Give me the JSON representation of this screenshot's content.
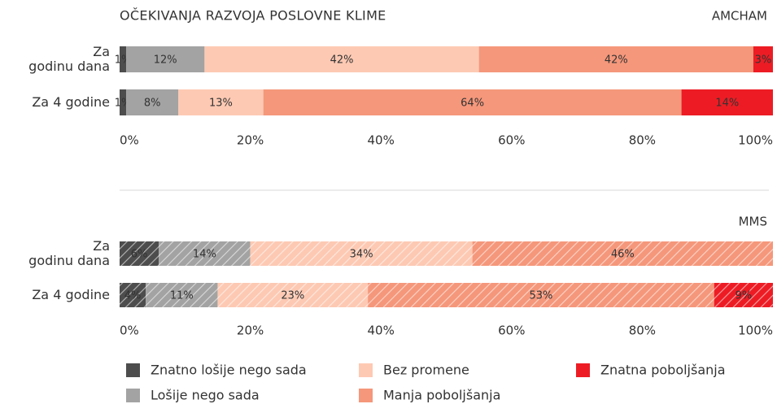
{
  "chart_data": [
    {
      "type": "stacked-bar-horizontal",
      "title": "OČEKIVANJA RAZVOJA POSLOVNE KLIME",
      "source": "AMCHAM",
      "categories": [
        "Za\ngodinu dana",
        "Za 4 godine"
      ],
      "series": [
        {
          "name": "Znatno lošije nego sada",
          "color": "#4d4d4d",
          "values": [
            1,
            1
          ],
          "value_labels": [
            "1%",
            "1%"
          ]
        },
        {
          "name": "Lošije nego sada",
          "color": "#a3a3a3",
          "values": [
            12,
            8
          ],
          "value_labels": [
            "12%",
            "8%"
          ]
        },
        {
          "name": "Bez promene",
          "color": "#fdc9b3",
          "values": [
            42,
            13
          ],
          "value_labels": [
            "42%",
            "13%"
          ]
        },
        {
          "name": "Manja poboljšanja",
          "color": "#f5977b",
          "values": [
            42,
            64
          ],
          "value_labels": [
            "42%",
            "64%"
          ]
        },
        {
          "name": "Znatna poboljšanja",
          "color": "#ed1c24",
          "values": [
            3,
            14
          ],
          "value_labels": [
            "3%",
            "14%"
          ]
        }
      ],
      "xlim": [
        0,
        100
      ],
      "xticks": [
        {
          "value": 0,
          "label": "0%"
        },
        {
          "value": 20,
          "label": "20%"
        },
        {
          "value": 40,
          "label": "40%"
        },
        {
          "value": 60,
          "label": "60%"
        },
        {
          "value": 80,
          "label": "80%"
        },
        {
          "value": 100,
          "label": "100%"
        }
      ],
      "grid": false,
      "hatched": false
    },
    {
      "type": "stacked-bar-horizontal",
      "source": "MMS",
      "categories": [
        "Za\ngodinu dana",
        "Za 4 godine"
      ],
      "series": [
        {
          "color": "#4d4d4d",
          "values": [
            6,
            4
          ],
          "value_labels": [
            "6%",
            "4%"
          ]
        },
        {
          "color": "#a3a3a3",
          "values": [
            14,
            11
          ],
          "value_labels": [
            "14%",
            "11%"
          ]
        },
        {
          "color": "#fdc9b3",
          "values": [
            34,
            23
          ],
          "value_labels": [
            "34%",
            "23%"
          ]
        },
        {
          "color": "#f5977b",
          "values": [
            46,
            53
          ],
          "value_labels": [
            "46%",
            "53%"
          ]
        },
        {
          "color": "#ed1c24",
          "values": [
            null,
            9
          ],
          "value_labels": [
            null,
            "9%"
          ]
        }
      ],
      "xlim": [
        0,
        100
      ],
      "xticks": [
        {
          "value": 0,
          "label": "0%"
        },
        {
          "value": 20,
          "label": "20%"
        },
        {
          "value": 40,
          "label": "40%"
        },
        {
          "value": 60,
          "label": "60%"
        },
        {
          "value": 80,
          "label": "80%"
        },
        {
          "value": 100,
          "label": "100%"
        }
      ],
      "grid": false,
      "hatched": true
    }
  ]
}
